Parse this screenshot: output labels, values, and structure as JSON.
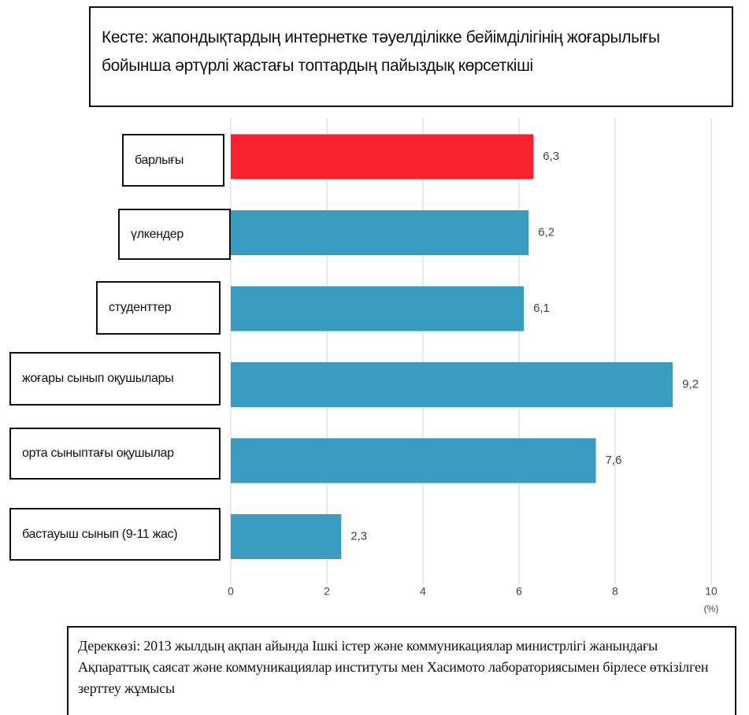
{
  "chart_data": {
    "type": "barh",
    "title": "Кесте: жапондықтардың интернетке тәуелділікке бейімділігінің жоғарылығы бойынша әртүрлі жастағы топтардың пайыздық көрсеткіші",
    "categories": [
      "барлығы",
      "үлкендер",
      "студенттер",
      "жоғары сынып оқушылары",
      "орта сыныптағы оқушылар",
      "бастауыш сынып (9-11 жас)"
    ],
    "values": [
      6.3,
      6.2,
      6.1,
      9.2,
      7.6,
      2.3
    ],
    "value_labels": [
      "6,3",
      "6,2",
      "6,1",
      "9,2",
      "7,6",
      "2,3"
    ],
    "colors": [
      "#f7222d",
      "#3b9cc2",
      "#3b9cc2",
      "#3b9cc2",
      "#3b9cc2",
      "#3b9cc2"
    ],
    "xlim": [
      0,
      10
    ],
    "xticks": [
      0,
      2,
      4,
      6,
      8,
      10
    ],
    "x_unit": "(%)",
    "grid": true,
    "source": "Дереккөзі: 2013 жылдың ақпан айында Ішкі істер және коммуникациялар министрлігі жанындағы Ақпараттық саясат және коммуникациялар институты мен Хасимото лабораториясымен бірлесе өткізілген зерттеу жұмысы"
  }
}
